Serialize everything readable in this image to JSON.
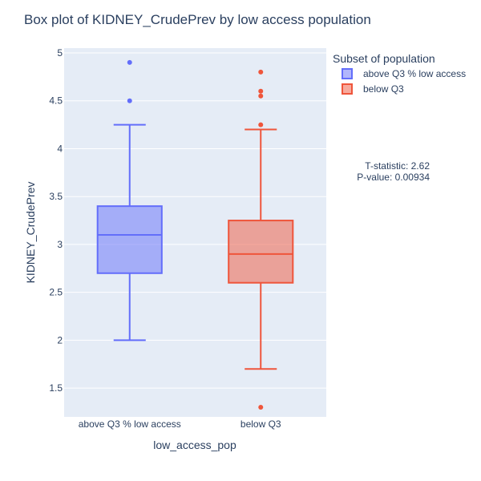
{
  "chart_data": {
    "type": "box",
    "title": "Box plot of KIDNEY_CrudePrev by low access population",
    "xlabel": "low_access_pop",
    "ylabel": "KIDNEY_CrudePrev",
    "categories": [
      "above Q3 % low access",
      "below Q3"
    ],
    "ylim": [
      1.2,
      5.05
    ],
    "yticks": [
      1.5,
      2,
      2.5,
      3,
      3.5,
      4,
      4.5,
      5
    ],
    "ytick_labels": [
      "1.5",
      "2",
      "2.5",
      "3",
      "3.5",
      "4",
      "4.5",
      "5"
    ],
    "grid": true,
    "legend": {
      "title": "Subset of population",
      "placement": "right"
    },
    "series": [
      {
        "name": "above Q3 % low access",
        "category": "above Q3 % low access",
        "color": "#636efa",
        "fill": "rgba(99,110,250,0.5)",
        "lowerfence": 2.0,
        "q1": 2.7,
        "median": 3.1,
        "q3": 3.4,
        "upperfence": 4.25,
        "outliers": [
          4.5,
          4.9
        ]
      },
      {
        "name": "below Q3",
        "category": "below Q3",
        "color": "#ef553b",
        "fill": "rgba(239,85,59,0.5)",
        "lowerfence": 1.7,
        "q1": 2.6,
        "median": 2.9,
        "q3": 3.25,
        "upperfence": 4.2,
        "outliers": [
          1.3,
          4.25,
          4.55,
          4.6,
          4.8
        ]
      }
    ],
    "annotations": [
      "T-statistic: 2.62",
      "P-value: 0.00934"
    ]
  }
}
